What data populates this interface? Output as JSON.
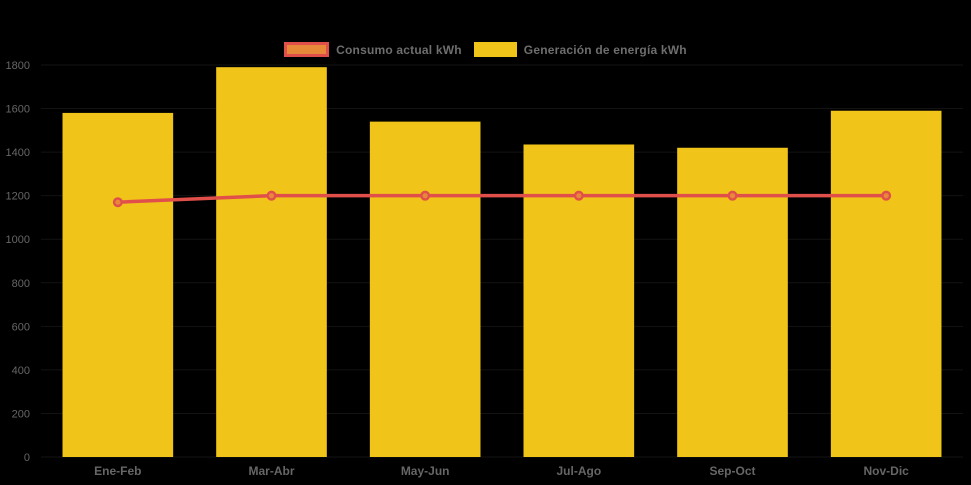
{
  "background_color": "#000000",
  "legend": {
    "position": "top-center",
    "items": [
      {
        "label": "Consumo actual kWh",
        "swatch_fill": "#E8893A",
        "swatch_border": "#E14F4B",
        "series_type": "line"
      },
      {
        "label": "Generación de energía kWh",
        "swatch_fill": "#F0C419",
        "swatch_border": "#F0C419",
        "series_type": "bar"
      }
    ]
  },
  "chart_data": {
    "type": "bar",
    "subtype": "bar-with-line-overlay",
    "title": "",
    "xlabel": "",
    "ylabel": "",
    "categories": [
      "Ene-Feb",
      "Mar-Abr",
      "May-Jun",
      "Jul-Ago",
      "Sep-Oct",
      "Nov-Dic"
    ],
    "series": [
      {
        "name": "Generación de energía kWh",
        "type": "bar",
        "color": "#F0C419",
        "values": [
          1580,
          1790,
          1540,
          1435,
          1420,
          1590
        ]
      },
      {
        "name": "Consumo actual kWh",
        "type": "line",
        "color": "#E14F4B",
        "marker_fill": "#E8893A",
        "values": [
          1170,
          1200,
          1200,
          1200,
          1200,
          1200
        ]
      }
    ],
    "ylim": [
      0,
      1800
    ],
    "y_tick_step": 200,
    "y_tick_labels": [
      "0",
      "200",
      "400",
      "600",
      "800",
      "1000",
      "1200",
      "1400",
      "1600",
      "1800"
    ],
    "grid": false,
    "legend_position": "top",
    "axis_text_color": "#666666"
  }
}
